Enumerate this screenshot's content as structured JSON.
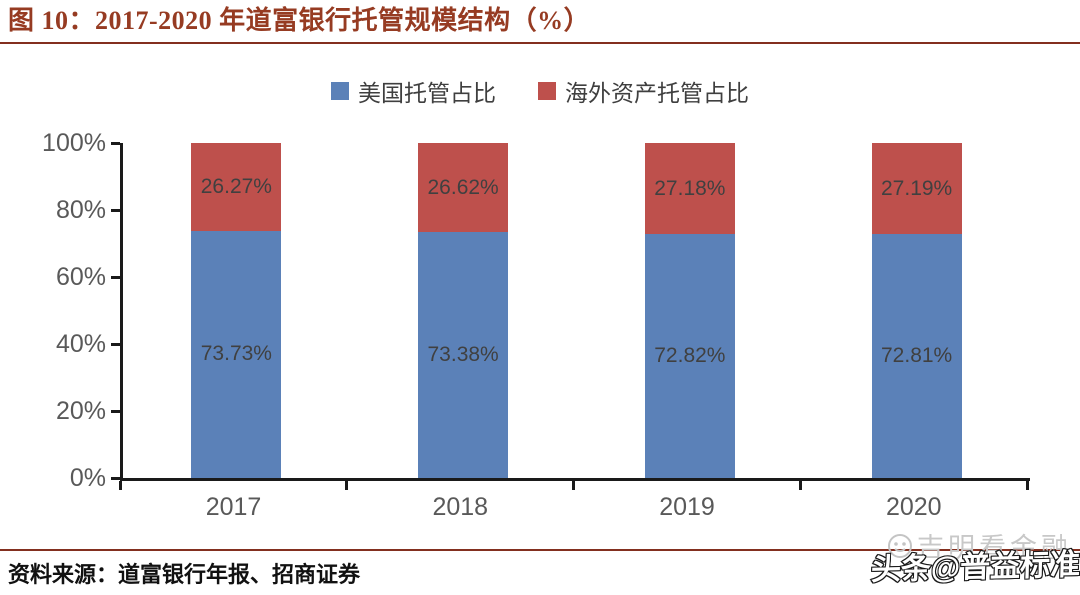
{
  "title": "图 10：2017-2020 年道富银行托管规模结构（%）",
  "source_text": "资料来源：道富银行年报、招商证券",
  "watermark": {
    "faint_text": "吉明看金融",
    "bold_text": "头条@普益标准",
    "icon": "smiley-face-icon"
  },
  "colors": {
    "title": "#963B22",
    "rule": "#832F1F",
    "axis": "#1A1A1A",
    "tick_label": "#595959",
    "data_label": "#404040",
    "series_us_blue": "#5B81B8",
    "series_overseas_red": "#BE504C"
  },
  "chart_data": {
    "type": "bar",
    "stacked": true,
    "title": "图 10：2017-2020 年道富银行托管规模结构（%）",
    "categories": [
      "2017",
      "2018",
      "2019",
      "2020"
    ],
    "series": [
      {
        "name": "美国托管占比",
        "color": "#5B81B8",
        "values": [
          73.73,
          73.38,
          72.82,
          72.81
        ],
        "labels": [
          "73.73%",
          "73.38%",
          "72.82%",
          "72.81%"
        ]
      },
      {
        "name": "海外资产托管占比",
        "color": "#BE504C",
        "values": [
          26.27,
          26.62,
          27.18,
          27.19
        ],
        "labels": [
          "26.27%",
          "26.62%",
          "27.18%",
          "27.19%"
        ]
      }
    ],
    "xlabel": "",
    "ylabel": "",
    "ylim": [
      0,
      100
    ],
    "y_ticks": [
      "0%",
      "20%",
      "40%",
      "60%",
      "80%",
      "100%"
    ],
    "grid": false,
    "legend_position": "top-center"
  }
}
